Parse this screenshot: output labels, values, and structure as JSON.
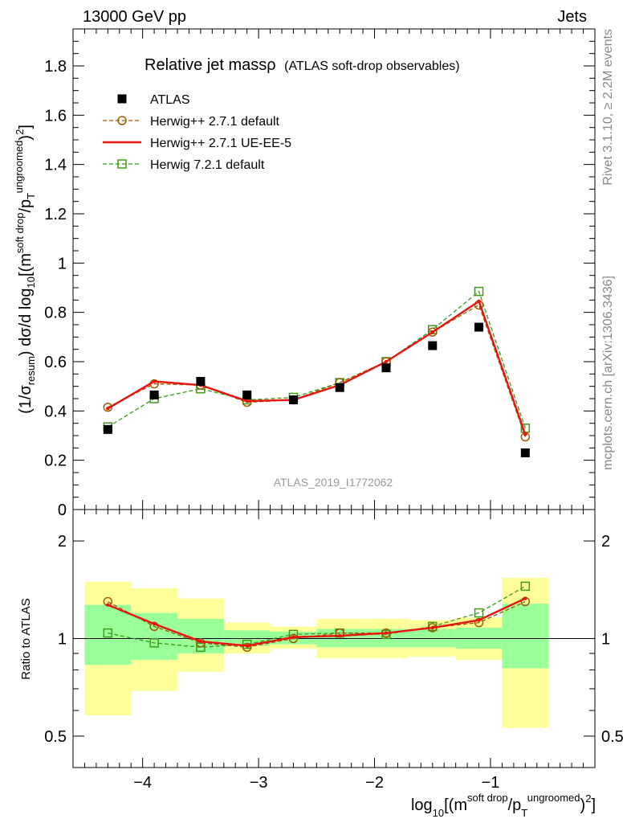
{
  "header": {
    "left": "13000 GeV pp",
    "right": "Jets"
  },
  "side_labels": {
    "rivet": "Rivet 3.1.10, ≥ 2.2M events",
    "mcplots": "mcplots.cern.ch [arXiv:1306.3436]"
  },
  "watermark": "ATLAS_2019_I1772062",
  "colors": {
    "atlas": "#000000",
    "herwig_default": "#a05a00",
    "herwig_ue": "#e8140f",
    "herwig7": "#3c9a14",
    "band_inner": "#99ff99",
    "band_outer": "#ffff99"
  },
  "chart_data": [
    {
      "type": "scatter",
      "panel": "main",
      "title_main": "Relative jet massρ",
      "title_sub": "(ATLAS soft-drop observables)",
      "ylabel": {
        "p1": "(1/σ",
        "sub1": "resum",
        "p2": ") dσ/d log",
        "sub2": "10",
        "p3": "[(m",
        "sup1": "soft drop",
        "p4": "/p",
        "sub3": "T",
        "sup2": "ungroomed",
        "p5": ")",
        "sup3": "2",
        "p6": "]"
      },
      "xlim": [
        -4.6,
        -0.1
      ],
      "ylim": [
        0,
        1.95
      ],
      "y_ticks": [
        0,
        0.2,
        0.4,
        0.6,
        0.8,
        1,
        1.2,
        1.4,
        1.6,
        1.8
      ],
      "y_tick_labels": [
        "0",
        "0.2",
        "0.4",
        "0.6",
        "0.8",
        "1",
        "1.2",
        "1.4",
        "1.6",
        "1.8"
      ],
      "legend_position": "top-left",
      "x": [
        -4.3,
        -3.9,
        -3.5,
        -3.1,
        -2.7,
        -2.3,
        -1.9,
        -1.5,
        -1.1,
        -0.7
      ],
      "series": [
        {
          "name": "ATLAS",
          "key": "atlas",
          "marker": "filled-square",
          "values": [
            0.325,
            0.465,
            0.52,
            0.465,
            0.445,
            0.495,
            0.575,
            0.665,
            0.74,
            0.23
          ]
        },
        {
          "name": "Herwig++ 2.7.1 default",
          "key": "herwig_default",
          "marker": "open-circle",
          "line": "dashed",
          "values": [
            0.415,
            0.51,
            0.505,
            0.435,
            0.445,
            0.515,
            0.6,
            0.72,
            0.83,
            0.295
          ]
        },
        {
          "name": "Herwig++ 2.7.1 UE-EE-5",
          "key": "herwig_ue",
          "marker": "none",
          "line": "solid",
          "values": [
            0.41,
            0.52,
            0.505,
            0.44,
            0.445,
            0.505,
            0.6,
            0.72,
            0.845,
            0.305
          ]
        },
        {
          "name": "Herwig 7.2.1 default",
          "key": "herwig7",
          "marker": "open-square",
          "line": "dashed",
          "values": [
            0.335,
            0.45,
            0.49,
            0.445,
            0.455,
            0.515,
            0.6,
            0.73,
            0.885,
            0.33
          ]
        }
      ]
    },
    {
      "type": "line",
      "panel": "ratio",
      "ylabel": "Ratio to ATLAS",
      "xlim": [
        -4.6,
        -0.1
      ],
      "ylim": [
        0.4,
        2.5
      ],
      "y_scale": "log",
      "y_tick_labels": [
        "0.5",
        "1",
        "2"
      ],
      "y_ticks": [
        0.5,
        1,
        2
      ],
      "x_ticks": [
        -4,
        -3,
        -2,
        -1
      ],
      "x_tick_labels": [
        "−4",
        "−3",
        "−2",
        "−1"
      ],
      "xlabel": {
        "p1": "log",
        "sub1": "10",
        "p2": "[(m",
        "sup1": "soft drop",
        "p3": "/p",
        "sub2": "T",
        "sup2": "ungroomed",
        "p4": ")",
        "sup3": "2",
        "p5": "]"
      },
      "bins": [
        {
          "lo": -4.5,
          "hi": -4.1,
          "inner": [
            0.83,
            1.27
          ],
          "outer": [
            0.58,
            1.5
          ]
        },
        {
          "lo": -4.1,
          "hi": -3.7,
          "inner": [
            0.86,
            1.2
          ],
          "outer": [
            0.69,
            1.43
          ]
        },
        {
          "lo": -3.7,
          "hi": -3.3,
          "inner": [
            0.9,
            1.15
          ],
          "outer": [
            0.79,
            1.33
          ]
        },
        {
          "lo": -3.3,
          "hi": -2.9,
          "inner": [
            0.95,
            1.06
          ],
          "outer": [
            0.9,
            1.12
          ]
        },
        {
          "lo": -2.9,
          "hi": -2.5,
          "inner": [
            0.96,
            1.05
          ],
          "outer": [
            0.93,
            1.09
          ]
        },
        {
          "lo": -2.5,
          "hi": -2.1,
          "inner": [
            0.94,
            1.07
          ],
          "outer": [
            0.87,
            1.15
          ]
        },
        {
          "lo": -2.1,
          "hi": -1.7,
          "inner": [
            0.94,
            1.07
          ],
          "outer": [
            0.87,
            1.15
          ]
        },
        {
          "lo": -1.7,
          "hi": -1.3,
          "inner": [
            0.94,
            1.07
          ],
          "outer": [
            0.88,
            1.14
          ]
        },
        {
          "lo": -1.3,
          "hi": -0.9,
          "inner": [
            0.93,
            1.08
          ],
          "outer": [
            0.86,
            1.16
          ]
        },
        {
          "lo": -0.9,
          "hi": -0.5,
          "inner": [
            0.81,
            1.28
          ],
          "outer": [
            0.53,
            1.54
          ]
        }
      ],
      "x": [
        -4.3,
        -3.9,
        -3.5,
        -3.1,
        -2.7,
        -2.3,
        -1.9,
        -1.5,
        -1.1,
        -0.7
      ],
      "series": [
        {
          "name": "Herwig++ 2.7.1 default",
          "key": "herwig_default",
          "marker": "open-circle",
          "line": "dashed",
          "values": [
            1.3,
            1.09,
            0.97,
            0.94,
            1.0,
            1.04,
            1.04,
            1.08,
            1.12,
            1.3
          ]
        },
        {
          "name": "Herwig++ 2.7.1 UE-EE-5",
          "key": "herwig_ue",
          "marker": "none",
          "line": "solid",
          "values": [
            1.27,
            1.11,
            0.98,
            0.95,
            1.01,
            1.02,
            1.04,
            1.08,
            1.14,
            1.33
          ]
        },
        {
          "name": "Herwig 7.2.1 default",
          "key": "herwig7",
          "marker": "open-square",
          "line": "dashed",
          "values": [
            1.04,
            0.97,
            0.94,
            0.96,
            1.03,
            1.04,
            1.03,
            1.09,
            1.2,
            1.45
          ]
        }
      ]
    }
  ]
}
